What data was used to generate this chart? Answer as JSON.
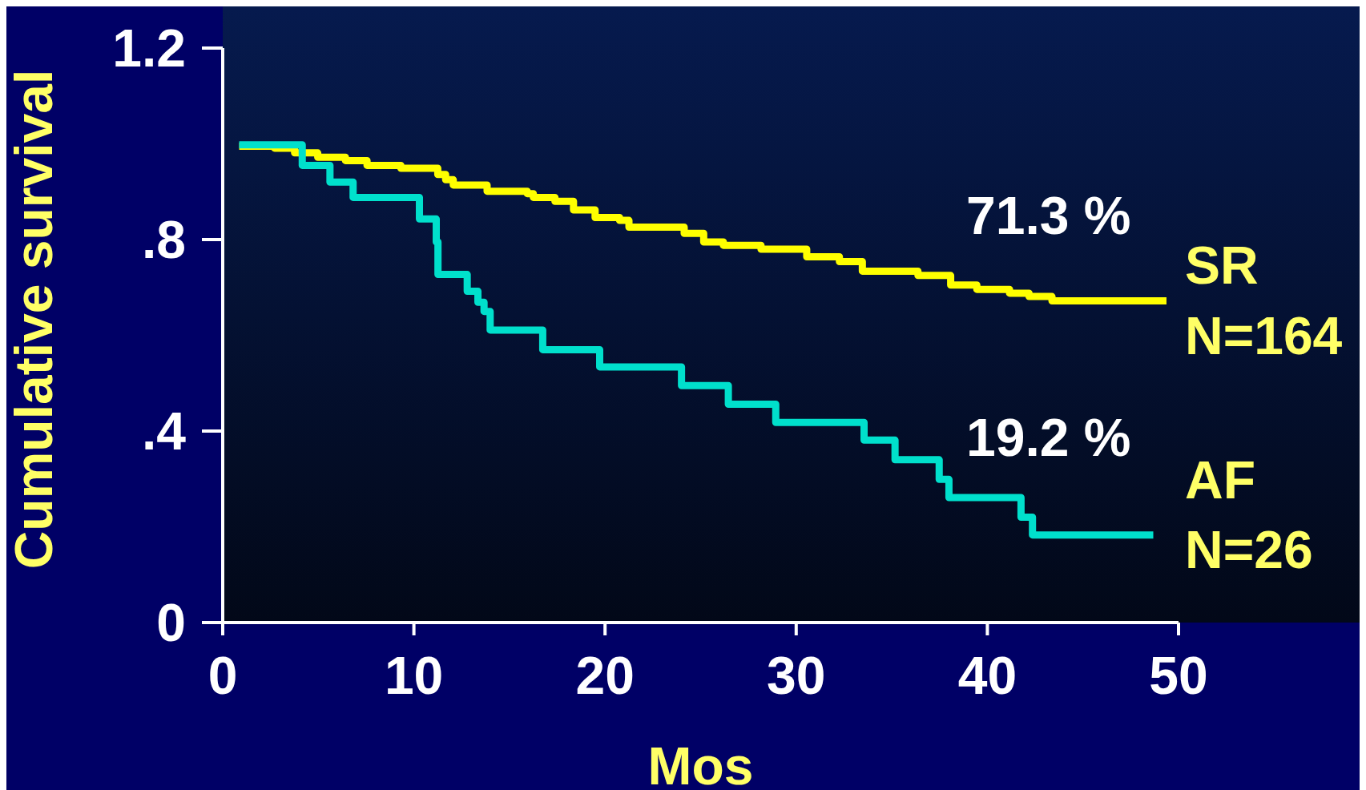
{
  "chart_data": {
    "type": "step",
    "xlabel": "Mos",
    "ylabel": "Cumulative survival",
    "xlim": [
      0,
      50
    ],
    "xticks": [
      0,
      10,
      20,
      30,
      40,
      50
    ],
    "ylim": [
      0,
      1.2
    ],
    "yticks": [
      0,
      {
        "value": 0.4,
        "label": ".4"
      },
      {
        "value": 0.8,
        "label": ".8"
      },
      1.2
    ],
    "grid": false,
    "series": [
      {
        "name": "SR",
        "color": "#ffff00",
        "x": [
          0.86,
          2.71,
          3.76,
          4.97,
          6.42,
          7.55,
          9.32,
          11.25,
          11.66,
          12.06,
          13.83,
          15.93,
          16.25,
          17.38,
          18.35,
          19.48,
          20.76,
          21.25,
          24.14,
          25.16,
          26.19,
          28.16,
          30.55,
          32.26,
          33.46,
          36.37,
          38.08,
          39.45,
          41.16,
          42.18,
          43.38,
          49.37
        ],
        "values": [
          0.995,
          0.991,
          0.981,
          0.972,
          0.965,
          0.955,
          0.949,
          0.936,
          0.925,
          0.914,
          0.901,
          0.896,
          0.888,
          0.88,
          0.862,
          0.846,
          0.84,
          0.826,
          0.813,
          0.795,
          0.788,
          0.78,
          0.764,
          0.754,
          0.734,
          0.725,
          0.705,
          0.696,
          0.688,
          0.681,
          0.672,
          0.672
        ]
      },
      {
        "name": "AF",
        "color": "#00e0cc",
        "x": [
          0.86,
          4.16,
          5.61,
          6.82,
          10.29,
          11.17,
          11.26,
          12.79,
          13.35,
          13.67,
          13.99,
          16.74,
          19.72,
          24.0,
          26.45,
          28.93,
          33.55,
          35.17,
          37.48,
          37.99,
          41.76,
          42.36,
          48.68
        ],
        "values": [
          0.998,
          0.955,
          0.92,
          0.888,
          0.843,
          0.795,
          0.727,
          0.692,
          0.669,
          0.65,
          0.611,
          0.57,
          0.534,
          0.495,
          0.456,
          0.418,
          0.381,
          0.34,
          0.299,
          0.261,
          0.22,
          0.183,
          0.183
        ]
      }
    ],
    "annotations": [
      "71.3 %",
      "N=164",
      "19.2 %",
      "N=26"
    ]
  }
}
